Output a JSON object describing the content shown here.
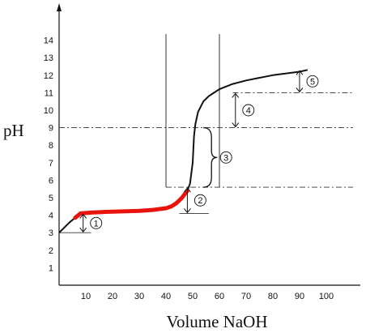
{
  "chart_data": {
    "type": "line",
    "title": "",
    "xlabel": "Volume NaOH",
    "ylabel": "pH",
    "xlim": [
      0,
      110
    ],
    "ylim": [
      0,
      15
    ],
    "x_ticks": [
      10,
      20,
      30,
      40,
      50,
      60,
      70,
      80,
      90,
      100
    ],
    "y_ticks": [
      1,
      2,
      3,
      4,
      5,
      6,
      7,
      8,
      9,
      10,
      11,
      12,
      13,
      14
    ],
    "colors": {
      "curve": "#111111",
      "highlight": "#e8140c",
      "guides": "#333333"
    },
    "curve": {
      "x": [
        0,
        4,
        8,
        12,
        16,
        20,
        25,
        30,
        35,
        40,
        42,
        44,
        46,
        48,
        49,
        50,
        50.5,
        51,
        52,
        54,
        56,
        58,
        60,
        65,
        70,
        75,
        80,
        85,
        90,
        93
      ],
      "y": [
        3.0,
        3.6,
        4.1,
        4.15,
        4.18,
        4.2,
        4.22,
        4.25,
        4.3,
        4.4,
        4.5,
        4.7,
        5.0,
        5.4,
        5.8,
        7.0,
        8.5,
        9.2,
        9.9,
        10.5,
        10.8,
        11.0,
        11.2,
        11.5,
        11.7,
        11.85,
        12.0,
        12.1,
        12.2,
        12.3
      ]
    },
    "highlight_range": [
      6,
      48
    ],
    "vertical_lines": [
      40,
      60
    ],
    "dashdot_levels": [
      {
        "y": 11.0,
        "x_from": 65,
        "x_to": 110
      },
      {
        "y": 9.0,
        "x_from": 0,
        "x_to": 110
      },
      {
        "y": 5.6,
        "x_from": 40,
        "x_to": 110
      }
    ],
    "solid_levels": [
      {
        "y": 3.0,
        "x_from": 0,
        "x_to": 12
      },
      {
        "y": 4.1,
        "x_from": 45,
        "x_to": 56
      }
    ],
    "markers": [
      {
        "label": "1",
        "type": "double-arrow",
        "x": 9,
        "y1": 3.0,
        "y2": 4.1
      },
      {
        "label": "2",
        "type": "double-arrow",
        "x": 48,
        "y1": 4.1,
        "y2": 5.6
      },
      {
        "label": "3",
        "type": "brace",
        "x": 54,
        "y1": 5.6,
        "y2": 9.0
      },
      {
        "label": "4",
        "type": "double-arrow",
        "x": 66,
        "y1": 9.0,
        "y2": 11.0
      },
      {
        "label": "5",
        "type": "double-arrow",
        "x": 90,
        "y1": 11.0,
        "y2": 12.3
      }
    ]
  }
}
